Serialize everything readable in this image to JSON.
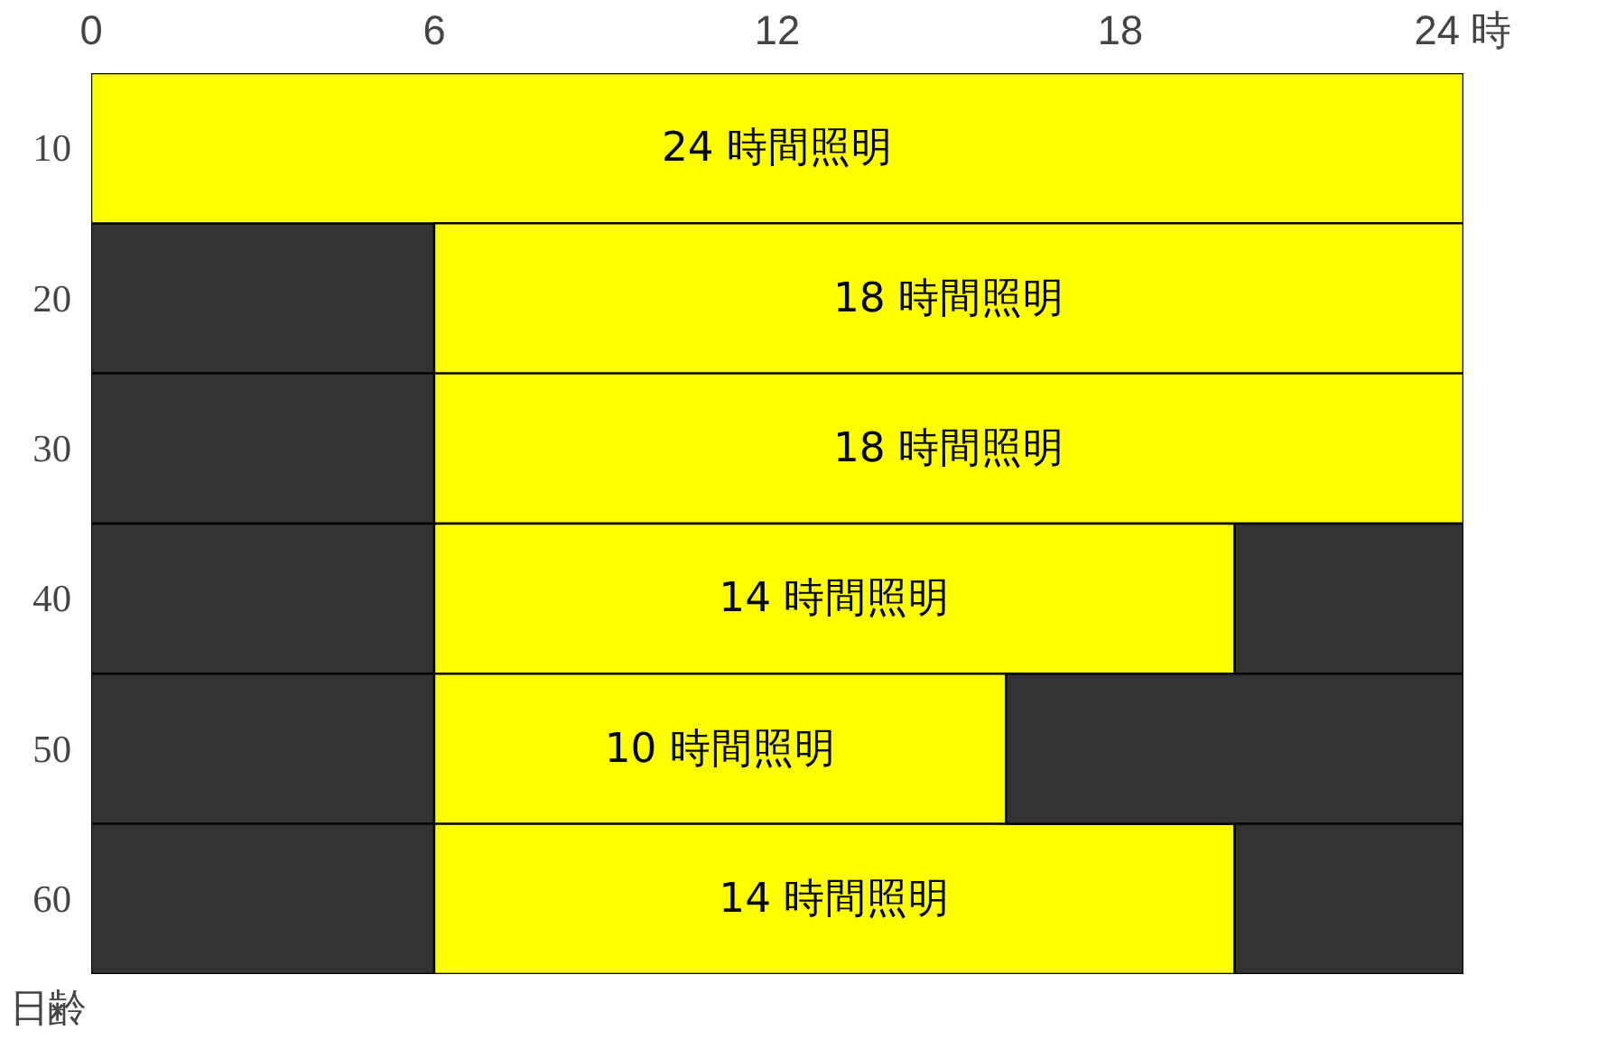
{
  "chart_data": {
    "type": "bar",
    "orientation": "horizontal",
    "stacked": true,
    "ylabel": "日齢",
    "categories": [
      "10",
      "20",
      "30",
      "40",
      "50",
      "60"
    ],
    "series": [
      {
        "color": "#333333",
        "values": [
          0,
          6,
          6,
          6,
          6,
          6
        ]
      },
      {
        "color": "#ffff00",
        "values": [
          24,
          18,
          18,
          14,
          10,
          14
        ],
        "value_labels": [
          "24 時間照明",
          "18 時間照明",
          "18 時間照明",
          "14 時間照明",
          "10 時間照明",
          "14 時間照明"
        ]
      },
      {
        "color": "#333333",
        "values": [
          0,
          0,
          0,
          4,
          8,
          4
        ]
      }
    ],
    "xlim": [
      0,
      24
    ],
    "xticks": [
      0,
      6,
      12,
      18,
      {
        "value": 24,
        "label": "24 時"
      }
    ]
  }
}
